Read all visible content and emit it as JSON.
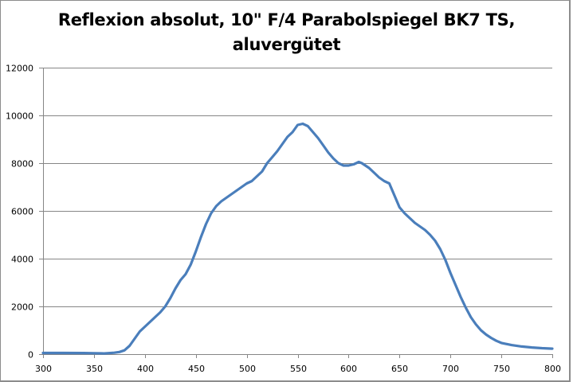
{
  "chart_data": {
    "type": "line",
    "title_line1": "Reflexion absolut, 10\" F/4 Parabolspiegel BK7 TS,",
    "title_line2": "aluvergütet",
    "title": "Reflexion absolut, 10\" F/4 Parabolspiegel BK7 TS, aluvergütet",
    "xlabel": "",
    "ylabel": "",
    "xlim": [
      300,
      800
    ],
    "ylim": [
      0,
      12000
    ],
    "x_ticks": [
      300,
      350,
      400,
      450,
      500,
      550,
      600,
      650,
      700,
      750,
      800
    ],
    "y_ticks": [
      0,
      2000,
      4000,
      6000,
      8000,
      10000,
      12000
    ],
    "grid": "horizontal",
    "legend": "none",
    "series": [
      {
        "name": "Reflexion",
        "color": "#4a7ebb",
        "x": [
          300,
          320,
          340,
          350,
          360,
          370,
          375,
          380,
          385,
          390,
          395,
          400,
          405,
          410,
          415,
          420,
          425,
          430,
          435,
          440,
          445,
          450,
          455,
          460,
          465,
          470,
          475,
          480,
          485,
          490,
          495,
          500,
          505,
          510,
          515,
          520,
          525,
          530,
          535,
          540,
          545,
          550,
          555,
          560,
          565,
          570,
          575,
          580,
          585,
          590,
          595,
          600,
          605,
          610,
          613,
          620,
          625,
          630,
          635,
          640,
          645,
          650,
          655,
          660,
          665,
          670,
          675,
          680,
          685,
          690,
          695,
          700,
          705,
          710,
          715,
          720,
          725,
          730,
          735,
          740,
          745,
          750,
          760,
          770,
          780,
          790,
          800
        ],
        "values": [
          50,
          50,
          45,
          40,
          30,
          60,
          90,
          160,
          350,
          650,
          950,
          1150,
          1350,
          1550,
          1750,
          2000,
          2350,
          2750,
          3100,
          3350,
          3750,
          4300,
          4900,
          5450,
          5900,
          6200,
          6400,
          6550,
          6700,
          6850,
          7000,
          7150,
          7250,
          7450,
          7650,
          8000,
          8250,
          8500,
          8800,
          9100,
          9300,
          9600,
          9650,
          9550,
          9300,
          9050,
          8750,
          8450,
          8200,
          8000,
          7900,
          7900,
          7950,
          8050,
          8000,
          7800,
          7600,
          7400,
          7250,
          7150,
          6650,
          6150,
          5900,
          5700,
          5500,
          5350,
          5200,
          5000,
          4750,
          4400,
          3950,
          3400,
          2900,
          2400,
          1950,
          1550,
          1250,
          1000,
          820,
          680,
          560,
          470,
          380,
          320,
          280,
          250,
          230
        ]
      }
    ]
  }
}
